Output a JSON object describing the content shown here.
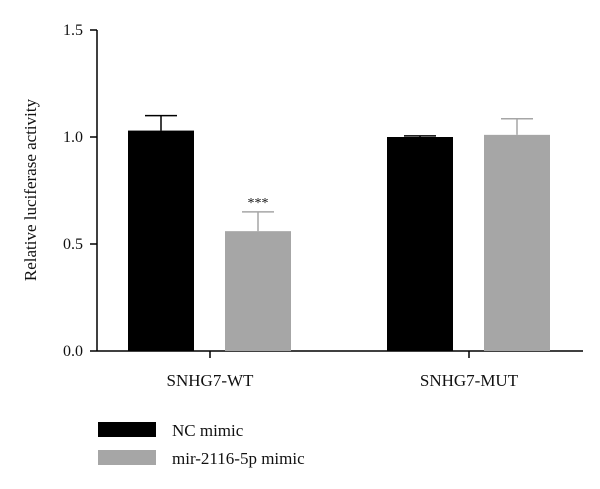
{
  "chart_data": {
    "type": "bar",
    "ylabel": "Relative luciferase activity",
    "ylim": [
      0,
      1.5
    ],
    "yticks": [
      "0.0",
      "0.5",
      "1.0",
      "1.5"
    ],
    "categories": [
      "SNHG7-WT",
      "SNHG7-MUT"
    ],
    "series": [
      {
        "name": "NC mimic",
        "color": "#000000",
        "values": [
          1.03,
          1.0
        ],
        "errors": [
          0.07,
          0.005
        ]
      },
      {
        "name": "mir-2116-5p mimic",
        "color": "#a6a6a6",
        "values": [
          0.56,
          1.01
        ],
        "errors": [
          0.09,
          0.075
        ]
      }
    ],
    "annotations": [
      {
        "category": "SNHG7-WT",
        "series": "mir-2116-5p mimic",
        "text": "***"
      }
    ],
    "legend": "bottom-left",
    "grid": false
  }
}
